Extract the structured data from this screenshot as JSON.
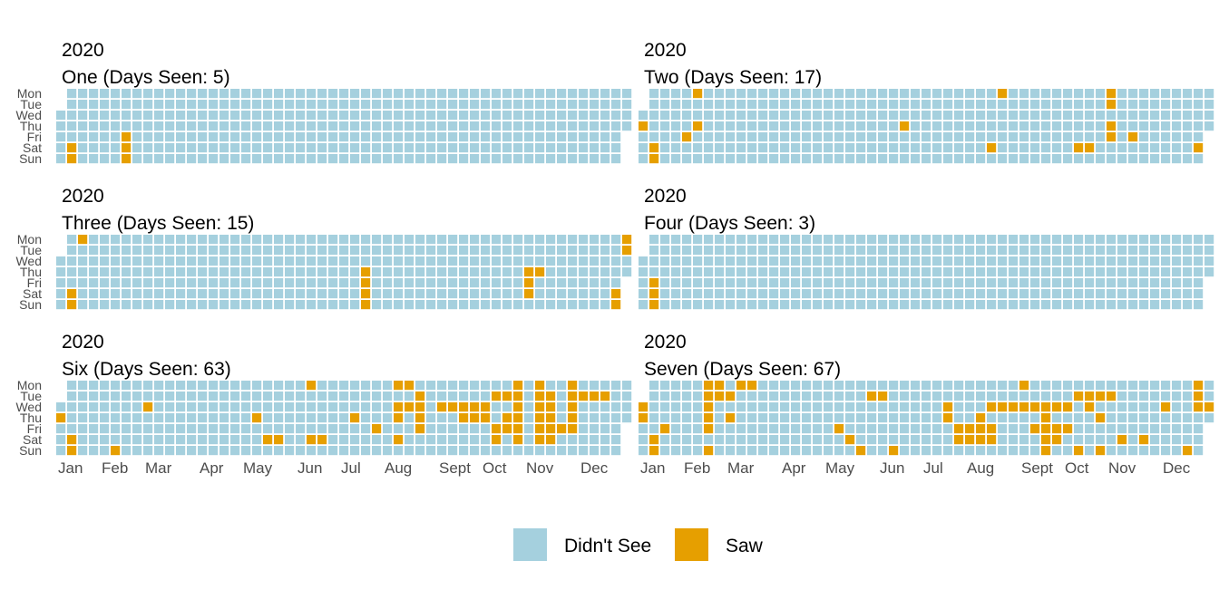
{
  "chart_data": {
    "type": "heatmap",
    "subtype": "calendar",
    "year": "2020",
    "day_labels": [
      "Mon",
      "Tue",
      "Wed",
      "Thu",
      "Fri",
      "Sat",
      "Sun"
    ],
    "month_labels": [
      "Jan",
      "Feb",
      "Mar",
      "Apr",
      "May",
      "Jun",
      "Jul",
      "Aug",
      "Sept",
      "Oct",
      "Nov",
      "Dec"
    ],
    "legend": [
      {
        "label": "Didn't See",
        "color": "#a5d0de"
      },
      {
        "label": "Saw",
        "color": "#e69f00"
      }
    ],
    "panels": [
      {
        "year": "2020",
        "title": "One (Days Seen: 5)",
        "seen_dates": [
          "2020-01-11",
          "2020-01-12",
          "2020-02-14",
          "2020-02-15",
          "2020-02-16"
        ]
      },
      {
        "year": "2020",
        "title": "Two (Days Seen: 17)",
        "seen_dates": [
          "2020-01-02",
          "2020-01-11",
          "2020-01-12",
          "2020-01-31",
          "2020-02-03",
          "2020-02-06",
          "2020-06-18",
          "2020-08-15",
          "2020-08-17",
          "2020-10-10",
          "2020-10-17",
          "2020-10-30",
          "2020-10-26",
          "2020-10-27",
          "2020-10-29",
          "2020-11-13",
          "2020-12-26"
        ]
      },
      {
        "year": "2020",
        "title": "Three (Days Seen: 15)",
        "seen_dates": [
          "2020-01-11",
          "2020-01-12",
          "2020-01-13",
          "2020-07-16",
          "2020-07-17",
          "2020-07-18",
          "2020-07-19",
          "2020-10-29",
          "2020-10-30",
          "2020-10-31",
          "2020-11-05",
          "2020-12-26",
          "2020-12-27",
          "2020-12-28",
          "2020-12-29"
        ]
      },
      {
        "year": "2020",
        "title": "Four (Days Seen: 3)",
        "seen_dates": [
          "2020-01-10",
          "2020-01-11",
          "2020-01-12"
        ]
      },
      {
        "year": "2020",
        "title": "Six (Days Seen: 63)",
        "seen_dates": [
          "2020-01-02",
          "2020-01-11",
          "2020-01-12",
          "2020-02-09",
          "2020-02-26",
          "2020-05-07",
          "2020-05-16",
          "2020-05-23",
          "2020-06-08",
          "2020-06-13",
          "2020-06-20",
          "2020-07-09",
          "2020-07-24",
          "2020-08-03",
          "2020-08-05",
          "2020-08-06",
          "2020-08-08",
          "2020-08-10",
          "2020-08-12",
          "2020-08-18",
          "2020-08-19",
          "2020-08-20",
          "2020-08-21",
          "2020-09-02",
          "2020-09-09",
          "2020-09-16",
          "2020-09-17",
          "2020-09-23",
          "2020-09-24",
          "2020-09-30",
          "2020-10-01",
          "2020-10-06",
          "2020-10-09",
          "2020-10-10",
          "2020-10-13",
          "2020-10-15",
          "2020-10-16",
          "2020-10-19",
          "2020-10-20",
          "2020-10-21",
          "2020-10-22",
          "2020-10-23",
          "2020-10-24",
          "2020-11-02",
          "2020-11-03",
          "2020-11-04",
          "2020-11-05",
          "2020-11-06",
          "2020-11-07",
          "2020-11-10",
          "2020-11-11",
          "2020-11-12",
          "2020-11-13",
          "2020-11-14",
          "2020-11-20",
          "2020-11-23",
          "2020-11-24",
          "2020-11-25",
          "2020-11-26",
          "2020-11-27",
          "2020-12-01",
          "2020-12-08",
          "2020-12-15"
        ]
      },
      {
        "year": "2020",
        "title": "Seven (Days Seen: 67)",
        "seen_dates": [
          "2020-01-01",
          "2020-01-02",
          "2020-01-11",
          "2020-01-12",
          "2020-01-17",
          "2020-02-10",
          "2020-02-11",
          "2020-02-12",
          "2020-02-13",
          "2020-02-14",
          "2020-02-16",
          "2020-02-17",
          "2020-02-18",
          "2020-02-25",
          "2020-02-27",
          "2020-03-02",
          "2020-03-09",
          "2020-05-08",
          "2020-05-16",
          "2020-05-24",
          "2020-05-26",
          "2020-06-02",
          "2020-06-14",
          "2020-07-15",
          "2020-07-16",
          "2020-07-24",
          "2020-07-25",
          "2020-07-31",
          "2020-08-01",
          "2020-08-06",
          "2020-08-07",
          "2020-08-08",
          "2020-08-12",
          "2020-08-14",
          "2020-08-15",
          "2020-08-19",
          "2020-08-26",
          "2020-08-31",
          "2020-09-02",
          "2020-09-09",
          "2020-09-11",
          "2020-09-16",
          "2020-09-17",
          "2020-09-18",
          "2020-09-19",
          "2020-09-20",
          "2020-09-23",
          "2020-09-25",
          "2020-09-26",
          "2020-09-30",
          "2020-10-02",
          "2020-10-06",
          "2020-10-11",
          "2020-10-13",
          "2020-10-14",
          "2020-10-20",
          "2020-10-22",
          "2020-10-25",
          "2020-10-27",
          "2020-11-07",
          "2020-11-21",
          "2020-12-02",
          "2020-12-20",
          "2020-12-21",
          "2020-12-22",
          "2020-12-23",
          "2020-12-30"
        ]
      }
    ]
  }
}
